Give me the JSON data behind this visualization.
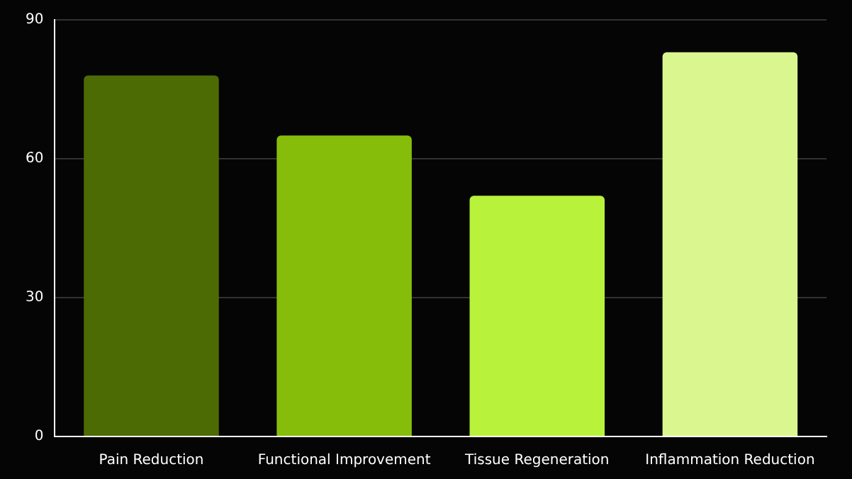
{
  "chart_data": {
    "type": "bar",
    "categories": [
      "Pain Reduction",
      "Functional Improvement",
      "Tissue Regeneration",
      "Inflammation Reduction"
    ],
    "values": [
      78,
      65,
      52,
      83
    ],
    "colors": [
      "#4d6b05",
      "#86bd0b",
      "#b9f23a",
      "#daf78f"
    ],
    "ylim": [
      0,
      90
    ],
    "yticks": [
      0,
      30,
      60,
      90
    ],
    "grid": "y",
    "legend": false
  }
}
